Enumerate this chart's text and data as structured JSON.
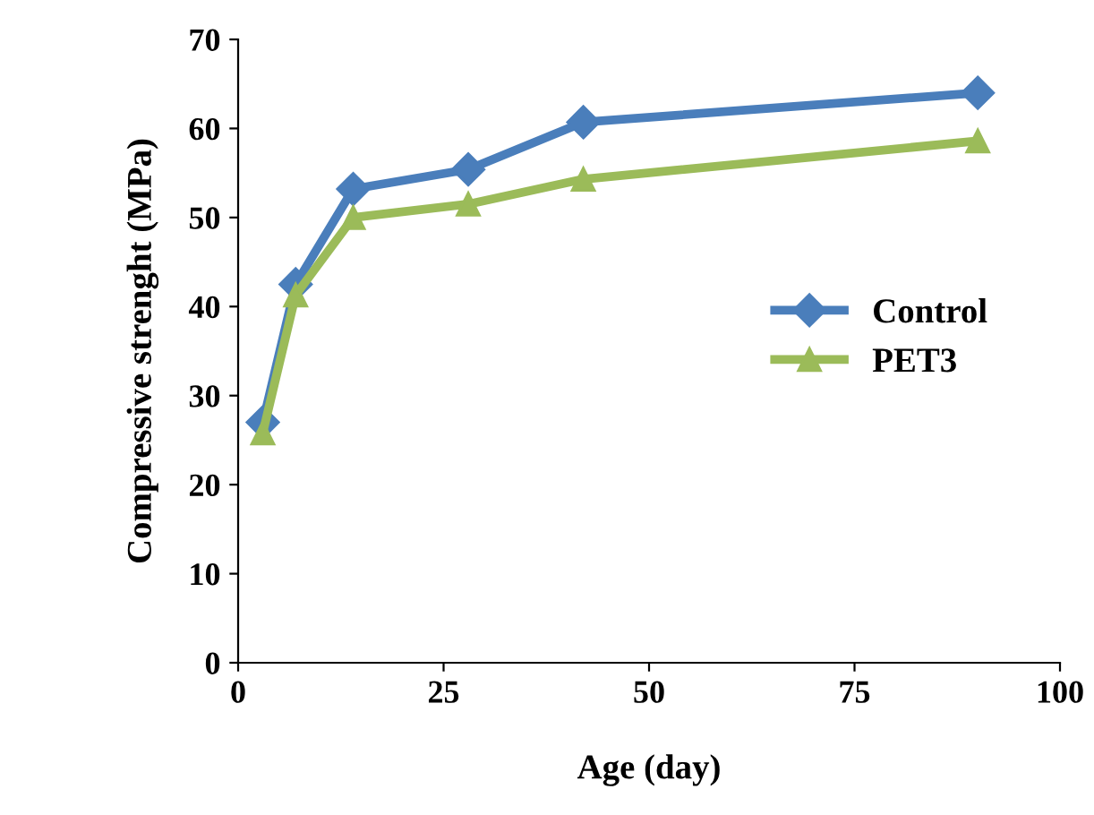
{
  "chart_data": {
    "type": "line",
    "xlabel": "Age (day)",
    "ylabel": "Compressive strenght (MPa)",
    "x": [
      3,
      7,
      14,
      28,
      42,
      90
    ],
    "series": [
      {
        "name": "Control",
        "color": "#4a7ebb",
        "marker": "diamond",
        "values": [
          27,
          42.5,
          53.2,
          55.4,
          60.7,
          64
        ]
      },
      {
        "name": "PET3",
        "color": "#9bbb59",
        "marker": "triangle",
        "values": [
          25.8,
          41.3,
          50,
          51.5,
          54.3,
          58.6
        ]
      }
    ],
    "xlim": [
      0,
      100
    ],
    "xticks": [
      0,
      25,
      50,
      75,
      100
    ],
    "ylim": [
      0,
      70
    ],
    "yticks": [
      0,
      10,
      20,
      30,
      40,
      50,
      60,
      70
    ],
    "grid": false,
    "legend": "right",
    "line_style": "solid"
  }
}
